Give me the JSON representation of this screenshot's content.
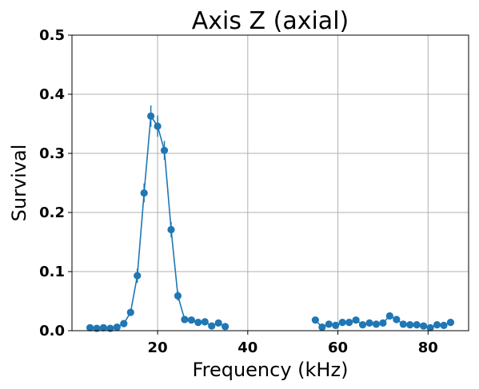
{
  "chart_data": {
    "type": "line",
    "title": "Axis Z (axial)",
    "xlabel": "Frequency (kHz)",
    "ylabel": "Survival",
    "xlim": [
      1,
      89
    ],
    "ylim": [
      0,
      0.5
    ],
    "xticks": [
      20,
      40,
      60,
      80
    ],
    "yticks": [
      0.0,
      0.1,
      0.2,
      0.3,
      0.4,
      0.5
    ],
    "xtick_labels": [
      "20",
      "40",
      "60",
      "80"
    ],
    "ytick_labels": [
      "0.0",
      "0.1",
      "0.2",
      "0.3",
      "0.4",
      "0.5"
    ],
    "grid": true,
    "color": "#1f77b4",
    "series": [
      {
        "segment": "low",
        "x": [
          5,
          6.5,
          8,
          9.5,
          11,
          12.5,
          14,
          15.5,
          17,
          18.5,
          20,
          21.5,
          23,
          24.5,
          26,
          27.5,
          29,
          30.5,
          32,
          33.5,
          35
        ],
        "y": [
          0.005,
          0.004,
          0.005,
          0.004,
          0.006,
          0.012,
          0.031,
          0.093,
          0.233,
          0.363,
          0.346,
          0.305,
          0.171,
          0.059,
          0.019,
          0.018,
          0.014,
          0.015,
          0.008,
          0.013,
          0.007
        ],
        "yerr": [
          0.002,
          0.002,
          0.002,
          0.002,
          0.002,
          0.004,
          0.006,
          0.012,
          0.016,
          0.018,
          0.018,
          0.016,
          0.013,
          0.008,
          0.004,
          0.004,
          0.003,
          0.003,
          0.003,
          0.003,
          0.002
        ]
      },
      {
        "segment": "high",
        "x": [
          55,
          56.5,
          58,
          59.5,
          61,
          62.5,
          64,
          65.5,
          67,
          68.5,
          70,
          71.5,
          73,
          74.5,
          76,
          77.5,
          79,
          80.5,
          82,
          83.5,
          85
        ],
        "y": [
          0.018,
          0.006,
          0.011,
          0.009,
          0.014,
          0.014,
          0.018,
          0.01,
          0.013,
          0.011,
          0.013,
          0.025,
          0.019,
          0.011,
          0.01,
          0.01,
          0.008,
          0.005,
          0.01,
          0.009,
          0.014
        ],
        "yerr": [
          0.003,
          0.002,
          0.003,
          0.002,
          0.003,
          0.003,
          0.003,
          0.003,
          0.003,
          0.003,
          0.003,
          0.004,
          0.003,
          0.003,
          0.003,
          0.003,
          0.002,
          0.002,
          0.003,
          0.002,
          0.003
        ]
      }
    ]
  }
}
